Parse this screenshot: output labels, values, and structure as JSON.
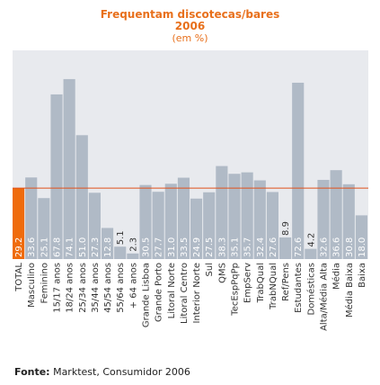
{
  "chart_data": {
    "type": "bar",
    "title": "Frequentam discotecas/bares",
    "subtitle_year": "2006",
    "subtitle_unit": "(em %)",
    "categories": [
      "TOTAL",
      "Masculino",
      "Feminino",
      "15/17 anos",
      "18/24 anos",
      "25/34 anos",
      "35/44 anos",
      "45/54 anos",
      "55/64 anos",
      "+ 64 anos",
      "Grande Lisboa",
      "Grande Porto",
      "Litoral Norte",
      "Litoral Centro",
      "Interior Norte",
      "Sul",
      "QMS",
      "TecEspPqPp",
      "EmpServ",
      "TrabQual",
      "TrabNQual",
      "Ref/Pens",
      "Estudantes",
      "Domésticas",
      "Alta/Média Alta",
      "Média",
      "Média Baixa",
      "Baixa"
    ],
    "values": [
      29.2,
      33.6,
      25.1,
      67.8,
      74.1,
      51.0,
      27.3,
      12.8,
      5.1,
      2.3,
      30.5,
      27.7,
      31.0,
      33.5,
      24.9,
      27.5,
      38.3,
      35.1,
      35.7,
      32.4,
      27.6,
      8.9,
      72.6,
      4.2,
      32.6,
      36.6,
      30.8,
      18.0
    ],
    "labels": [
      "29.2",
      "33.6",
      "25.1",
      "67.8",
      "74.1",
      "51.0",
      "27.3",
      "12.8",
      "5.1",
      "2.3",
      "30.5",
      "27.7",
      "31.0",
      "33.5",
      "24.9",
      "27.5",
      "38.3",
      "35.1",
      "35.7",
      "32.4",
      "27.6",
      "8.9",
      "72.6",
      "4.2",
      "32.6",
      "36.6",
      "30.8",
      "18.0"
    ],
    "highlight_index": 0,
    "reference_value": 29.2,
    "colors": {
      "bar": "#b0bac6",
      "highlight": "#ef6b0c",
      "reference_line": "#e0501a",
      "plot_bg": "#e8eaee",
      "label_inside": "#ffffff",
      "label_outside": "#333333"
    }
  },
  "source": {
    "label": "Fonte:",
    "text": "Marktest, Consumidor 2006"
  }
}
